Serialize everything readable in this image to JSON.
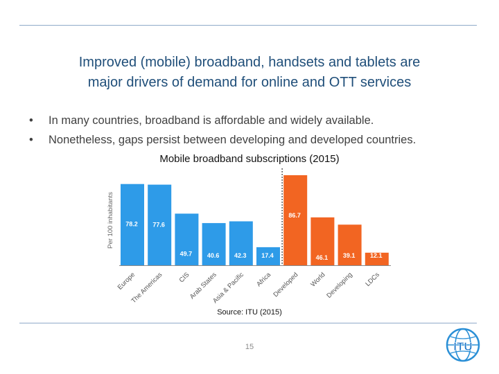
{
  "slide": {
    "title_line1": "Improved (mobile) broadband, handsets and tablets are",
    "title_line2": "major drivers of demand for online and OTT services",
    "bullets": [
      "In many countries, broadband is affordable and widely available.",
      "Nonetheless, gaps persist between developing and developed countries."
    ],
    "source": "Source: ITU (2015)",
    "page_number": "15",
    "logo_text": "ITU"
  },
  "chart_data": {
    "type": "bar",
    "title": "Mobile broadband subscriptions (2015)",
    "ylabel": "Per 100 inhabitants",
    "xlabel": "",
    "categories": [
      "Europe",
      "The Americas",
      "CIS",
      "Arab States",
      "Asia & Pacific",
      "Africa",
      "Developed",
      "World",
      "Developing",
      "LDCs"
    ],
    "values": [
      78.2,
      77.6,
      49.7,
      40.6,
      42.3,
      17.4,
      86.7,
      46.1,
      39.1,
      12.1
    ],
    "value_labels": [
      "78.2",
      "77.6",
      "49.7",
      "40.6",
      "42.3",
      "17.4",
      "86.7",
      "46.1",
      "39.1",
      "12.1"
    ],
    "groups": [
      "region",
      "region",
      "region",
      "region",
      "region",
      "region",
      "development",
      "development",
      "development",
      "development"
    ],
    "colors": {
      "region": "#2e9be8",
      "development": "#f26522"
    },
    "ylim": [
      0,
      90
    ],
    "grid": false,
    "legend": "none",
    "divider_after_index": 5
  }
}
